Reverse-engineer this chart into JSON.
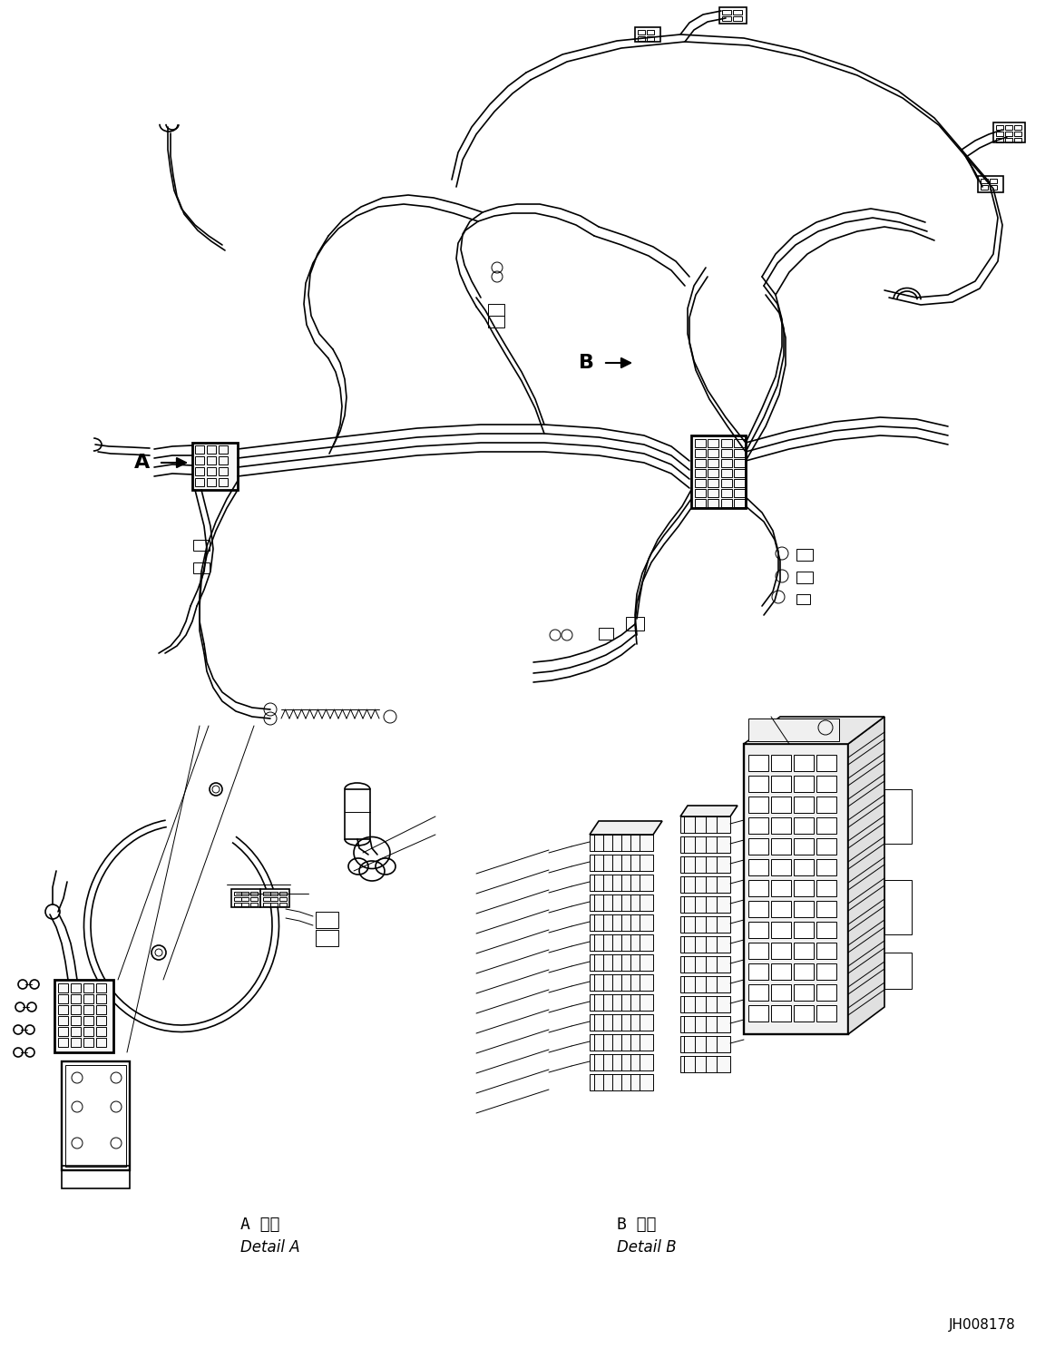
{
  "figsize": [
    11.63,
    14.87
  ],
  "dpi": 100,
  "background_color": "#ffffff",
  "label_A": "A",
  "label_B": "B",
  "detail_a_label_jp": "A 詳細",
  "detail_a_label_en": "Detail A",
  "detail_b_label_jp": "B 詳細",
  "detail_b_label_en": "Detail B",
  "drawing_number": "JH008178",
  "line_color": "#000000",
  "lw": 1.2,
  "tlw": 0.7,
  "thw": 2.0
}
